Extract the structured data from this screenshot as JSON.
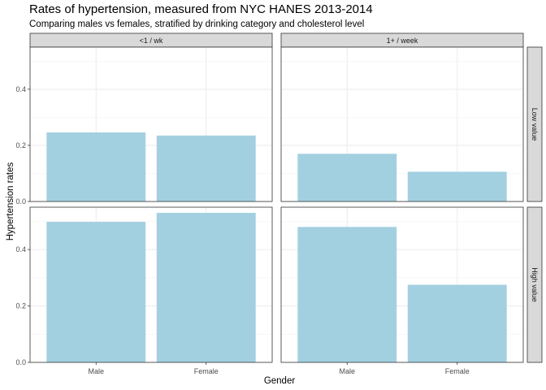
{
  "chart_data": {
    "type": "bar",
    "title": "Rates of hypertension, measured from NYC HANES 2013-2014",
    "subtitle": "Comparing males vs females, stratified by drinking category and cholesterol level",
    "xlabel": "Gender",
    "ylabel": "Hypertension rates",
    "categories": [
      "Male",
      "Female"
    ],
    "facet_columns": [
      "<1 / wk",
      "1+ / week"
    ],
    "facet_rows": [
      "Low value",
      "High value"
    ],
    "ylim": [
      0,
      0.55
    ],
    "yticks": [
      0.0,
      0.2,
      0.4
    ],
    "ytick_labels": [
      "0.0",
      "0.2",
      "0.4"
    ],
    "grid": true,
    "bar_color": "#a3d0e0",
    "panels": [
      {
        "column": "<1 / wk",
        "row": "Low value",
        "values": [
          0.246,
          0.235
        ]
      },
      {
        "column": "1+ / week",
        "row": "Low value",
        "values": [
          0.17,
          0.106
        ]
      },
      {
        "column": "<1 / wk",
        "row": "High value",
        "values": [
          0.498,
          0.53
        ]
      },
      {
        "column": "1+ / week",
        "row": "High value",
        "values": [
          0.48,
          0.275
        ]
      }
    ]
  }
}
